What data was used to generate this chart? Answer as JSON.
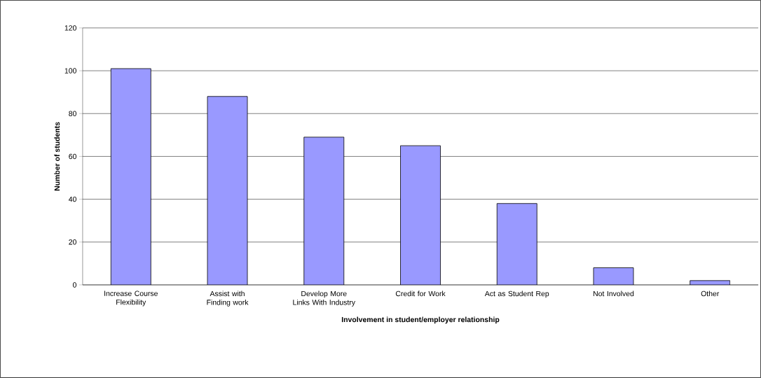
{
  "chart_data": {
    "type": "bar",
    "xlabel": "Involvement in student/employer relationship",
    "ylabel": "Number of students",
    "categories": [
      "Increase Course Flexibility",
      "Assist with Finding work",
      "Develop More Links With Industry",
      "Credit for Work",
      "Act as Student Rep",
      "Not Involved",
      "Other"
    ],
    "values": [
      101,
      88,
      69,
      65,
      38,
      8,
      2
    ],
    "color": "#9999ff",
    "ylim": [
      0,
      120
    ],
    "yticks": [
      0,
      20,
      40,
      60,
      80,
      100,
      120
    ],
    "grid": "y"
  }
}
